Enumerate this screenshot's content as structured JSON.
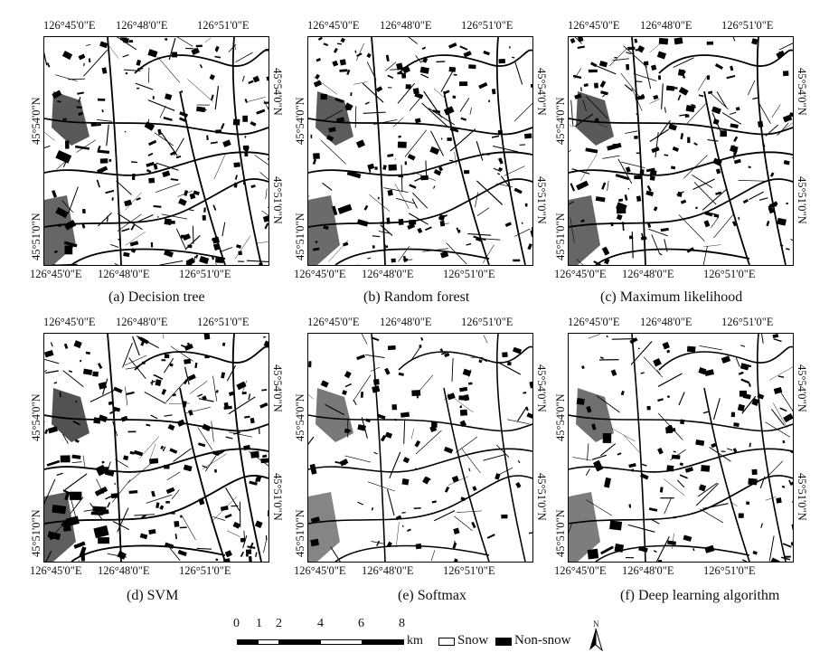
{
  "panels": [
    {
      "caption": "(a) Decision tree",
      "density": 1.0
    },
    {
      "caption": "(b) Random forest",
      "density": 0.95
    },
    {
      "caption": "(c) Maximum likelihood",
      "density": 1.0
    },
    {
      "caption": "(d) SVM",
      "density": 1.1
    },
    {
      "caption": "(e) Softmax",
      "density": 0.6
    },
    {
      "caption": "(f) Deep learning algorithm",
      "density": 0.7
    }
  ],
  "axis_labels": {
    "lon": [
      "126°45'0\"E",
      "126°48'0\"E",
      "126°51'0\"E"
    ],
    "lat": [
      "45°54'0\"N",
      "45°51'0\"N"
    ]
  },
  "scale_bar": {
    "ticks": [
      "0",
      "1",
      "2",
      "4",
      "6",
      "8"
    ],
    "unit": "km"
  },
  "legend": {
    "snow_label": "Snow",
    "nonsnow_label": "Non-snow",
    "north_label": "N",
    "snow_color": "#ffffff",
    "nonsnow_color": "#000000"
  }
}
